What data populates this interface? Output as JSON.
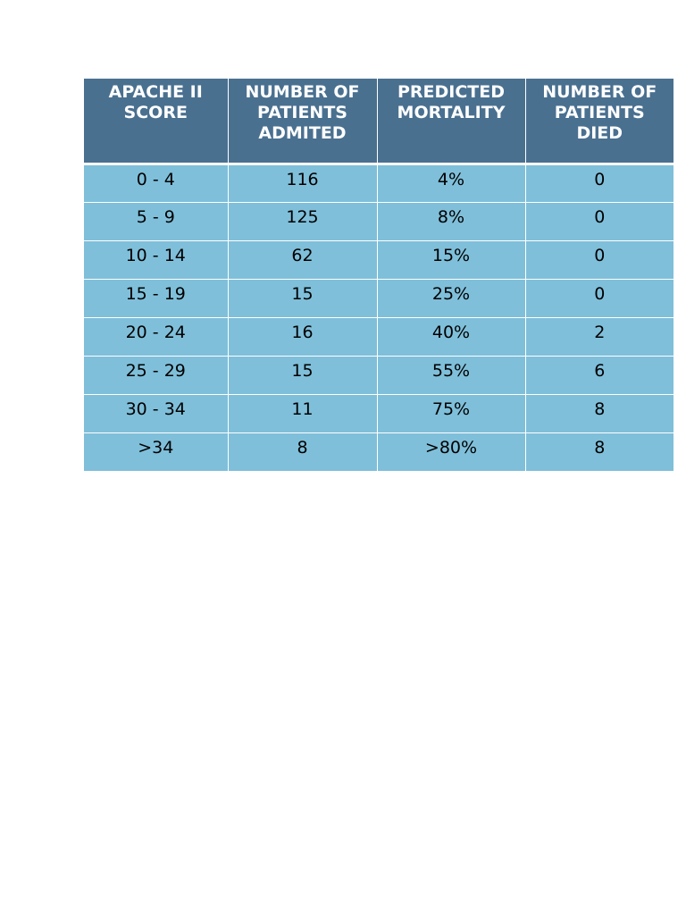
{
  "table": {
    "header": [
      "APACHE II SCORE",
      "NUMBER OF PATIENTS ADMITED",
      "PREDICTED MORTALITY",
      "NUMBER OF PATIENTS DIED"
    ],
    "rows": [
      [
        "0 - 4",
        116,
        "4%",
        0
      ],
      [
        "5 - 9",
        125,
        "8%",
        0
      ],
      [
        "10 - 14",
        62,
        "15%",
        0
      ],
      [
        "15 - 19",
        15,
        "25%",
        0
      ],
      [
        "20 - 24",
        16,
        "40%",
        2
      ],
      [
        "25 - 29",
        15,
        "55%",
        6
      ],
      [
        "30 - 34",
        11,
        "75%",
        8
      ],
      [
        ">34",
        8,
        ">80%",
        8
      ]
    ]
  }
}
